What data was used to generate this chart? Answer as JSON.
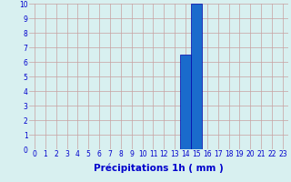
{
  "categories": [
    0,
    1,
    2,
    3,
    4,
    5,
    6,
    7,
    8,
    9,
    10,
    11,
    12,
    13,
    14,
    15,
    16,
    17,
    18,
    19,
    20,
    21,
    22,
    23
  ],
  "values": [
    0,
    0,
    0,
    0,
    0,
    0,
    0,
    0,
    0,
    0,
    0,
    0,
    0,
    0,
    6.5,
    10,
    0,
    0,
    0,
    0,
    0,
    0,
    0,
    0
  ],
  "bar_color": "#1a6bcc",
  "bar_edge_color": "#0000aa",
  "background_color": "#d8f0f0",
  "grid_color": "#c8a0a0",
  "xlabel": "Précipitations 1h ( mm )",
  "xlabel_color": "#0000cc",
  "xlabel_fontsize": 7.5,
  "tick_color": "#0000cc",
  "tick_fontsize": 5.5,
  "ylim": [
    0,
    10
  ],
  "yticks": [
    0,
    1,
    2,
    3,
    4,
    5,
    6,
    7,
    8,
    9,
    10
  ],
  "xlim": [
    -0.5,
    23.5
  ]
}
